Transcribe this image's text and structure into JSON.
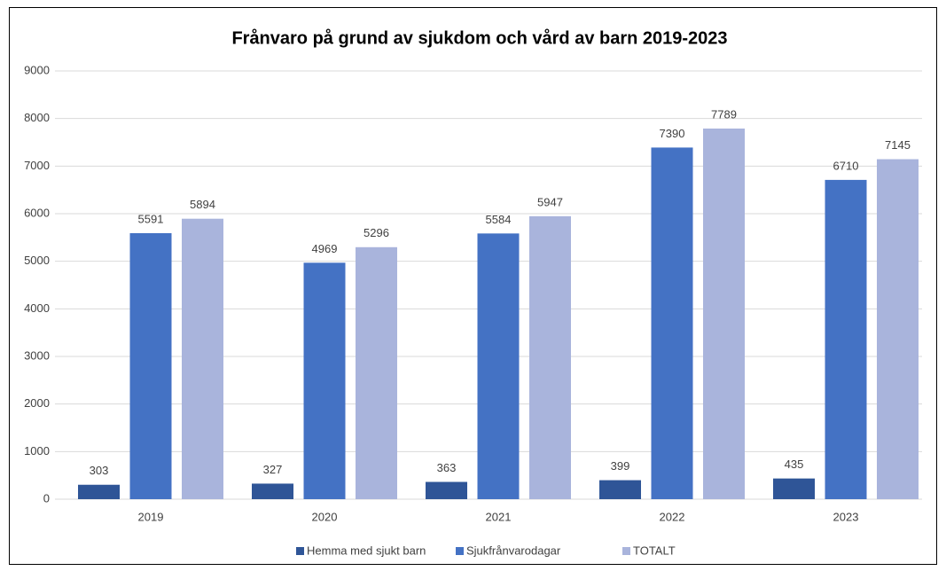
{
  "chart_data": {
    "type": "bar",
    "title": "Frånvaro på grund av sjukdom och vård av barn 2019-2023",
    "categories": [
      "2019",
      "2020",
      "2021",
      "2022",
      "2023"
    ],
    "series": [
      {
        "name": "Hemma med sjukt barn",
        "color": "#2f5597",
        "values": [
          303,
          327,
          363,
          399,
          435
        ]
      },
      {
        "name": "Sjukfrånvarodagar",
        "color": "#4472c4",
        "values": [
          5591,
          4969,
          5584,
          7390,
          6710
        ]
      },
      {
        "name": "TOTALT",
        "color": "#a9b4dc",
        "values": [
          5894,
          5296,
          5947,
          7789,
          7145
        ]
      }
    ],
    "ylim": [
      0,
      9000
    ],
    "yticks": [
      0,
      1000,
      2000,
      3000,
      4000,
      5000,
      6000,
      7000,
      8000,
      9000
    ],
    "grid": true,
    "legend": "bottom"
  }
}
